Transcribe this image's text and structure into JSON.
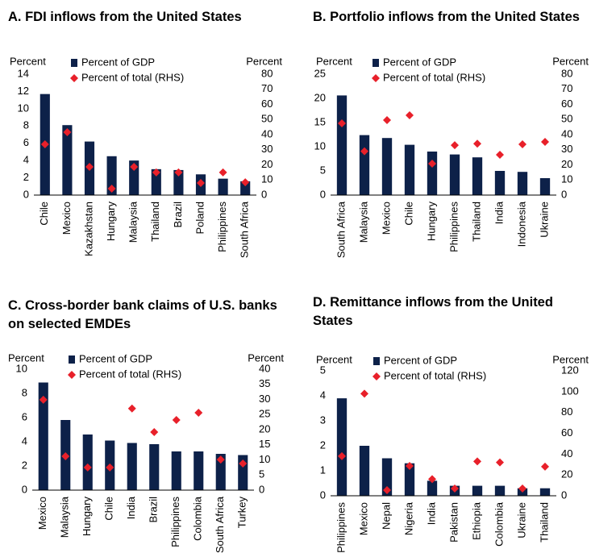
{
  "chart_data": [
    {
      "type": "bar",
      "title": "A. FDI inflows from the United States",
      "y_label": "Percent",
      "y2_label": "Percent",
      "categories": [
        "Chile",
        "Mexico",
        "Kazakhstan",
        "Hungary",
        "Malaysia",
        "Thailand",
        "Brazil",
        "Poland",
        "Philippines",
        "South Africa"
      ],
      "series": [
        {
          "name": "Percent of GDP",
          "color": "#0d2149",
          "values": [
            11.7,
            8.1,
            6.2,
            4.5,
            4.0,
            3.0,
            2.9,
            2.4,
            1.9,
            1.6
          ]
        },
        {
          "name": "Percent of total (RHS)",
          "color": "#e8202a",
          "marker": "diamond",
          "axis": "y2",
          "values": [
            33.6,
            41.6,
            18.7,
            4.3,
            18.7,
            15,
            15,
            8,
            15,
            8.5
          ]
        }
      ],
      "ylim": [
        0,
        14
      ],
      "yticks": [
        0,
        2,
        4,
        6,
        8,
        10,
        12,
        14
      ],
      "y2lim": [
        0,
        80
      ],
      "y2ticks": [
        0,
        10,
        20,
        30,
        40,
        50,
        60,
        70,
        80
      ]
    },
    {
      "type": "bar",
      "title": "B. Portfolio inflows from the United States",
      "y_label": "Percent",
      "y2_label": "Percent",
      "categories": [
        "South Africa",
        "Malaysia",
        "Mexico",
        "Chile",
        "Hungary",
        "Philippines",
        "Thailand",
        "India",
        "Indonesia",
        "Ukraine"
      ],
      "series": [
        {
          "name": "Percent of GDP",
          "color": "#0d2149",
          "values": [
            20.6,
            12.4,
            11.8,
            10.4,
            9.0,
            8.4,
            7.8,
            5.0,
            4.8,
            3.5
          ]
        },
        {
          "name": "Percent of total (RHS)",
          "color": "#e8202a",
          "marker": "diamond",
          "axis": "y2",
          "values": [
            47.5,
            29,
            49.6,
            52.8,
            20.8,
            33,
            34,
            26.7,
            33.6,
            35.2
          ]
        }
      ],
      "ylim": [
        0,
        25
      ],
      "yticks": [
        0,
        5,
        10,
        15,
        20,
        25
      ],
      "y2lim": [
        0,
        80
      ],
      "y2ticks": [
        0,
        10,
        20,
        30,
        40,
        50,
        60,
        70,
        80
      ]
    },
    {
      "type": "bar",
      "title": "C. Cross-border bank claims of U.S. banks on selected EMDEs",
      "y_label": "Percent",
      "y2_label": "Percent",
      "categories": [
        "Mexico",
        "Malaysia",
        "Hungary",
        "Chile",
        "India",
        "Brazil",
        "Philippines",
        "Colombia",
        "South Africa",
        "Turkey"
      ],
      "series": [
        {
          "name": "Percent of GDP",
          "color": "#0d2149",
          "values": [
            8.9,
            5.8,
            4.6,
            4.1,
            3.9,
            3.8,
            3.2,
            3.2,
            3.0,
            2.9
          ]
        },
        {
          "name": "Percent of total (RHS)",
          "color": "#e8202a",
          "marker": "diamond",
          "axis": "y2",
          "values": [
            29.9,
            11.2,
            7.5,
            7.5,
            27,
            19.2,
            23.2,
            25.6,
            10.1,
            8.8
          ]
        }
      ],
      "ylim": [
        0,
        10
      ],
      "yticks": [
        0,
        2,
        4,
        6,
        8,
        10
      ],
      "y2lim": [
        0,
        40
      ],
      "y2ticks": [
        0,
        5,
        10,
        15,
        20,
        25,
        30,
        35,
        40
      ]
    },
    {
      "type": "bar",
      "title": "D. Remittance inflows from the United States",
      "y_label": "Percent",
      "y2_label": "Percent",
      "categories": [
        "Philippines",
        "Mexico",
        "Nepal",
        "Nigeria",
        "India",
        "Pakistan",
        "Ethiopia",
        "Colombia",
        "Ukraine",
        "Thailand"
      ],
      "series": [
        {
          "name": "Percent of GDP",
          "color": "#0d2149",
          "values": [
            3.9,
            2.0,
            1.5,
            1.3,
            0.6,
            0.4,
            0.4,
            0.4,
            0.3,
            0.3
          ]
        },
        {
          "name": "Percent of total (RHS)",
          "color": "#e8202a",
          "marker": "diamond",
          "axis": "y2",
          "values": [
            38,
            98,
            5.4,
            28.6,
            16,
            7,
            33,
            32,
            7,
            28
          ]
        }
      ],
      "ylim": [
        0,
        5
      ],
      "yticks": [
        0,
        1,
        2,
        3,
        4,
        5
      ],
      "y2lim": [
        0,
        120
      ],
      "y2ticks": [
        0,
        20,
        40,
        60,
        80,
        100,
        120
      ]
    }
  ]
}
